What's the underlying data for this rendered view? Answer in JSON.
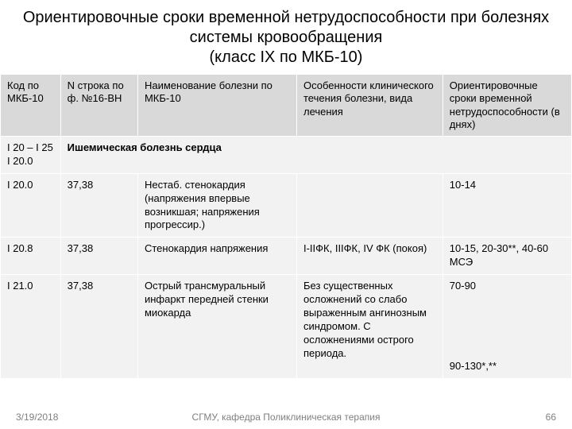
{
  "title": "Ориентировочные сроки временной нетрудоспособности при болезнях системы кровообращения\n(класс IX по МКБ-10)",
  "header": {
    "col1": "Код по МКБ-10",
    "col2": "N строка по ф. №16-ВН",
    "col3": "Наименование болезни по МКБ-10",
    "col4": "Особенности клинического течения болезни, вида лечения",
    "col5": "Ориентировочные сроки временной нетрудоспособности (в днях)"
  },
  "section": {
    "code": "I 20 – I 25 I 20.0",
    "title": "Ишемическая болезнь сердца"
  },
  "rows": [
    {
      "col1": "I 20.0",
      "col2": "37,38",
      "col3": "Нестаб. стенокардия (напряжения впервые возникшая; напряжения прогрессир.)",
      "col4": "",
      "col5": "10-14"
    },
    {
      "col1": "I  20.8",
      "col2": "37,38",
      "col3": "Стенокардия напряжения",
      "col4": "I-IIФК, IIIФК, IV ФК (покоя)",
      "col5": "10-15, 20-30**, 40-60 МСЭ"
    },
    {
      "col1": "I  21.0",
      "col2": "37,38",
      "col3": "Острый трансмуральный инфаркт передней стенки миокарда",
      "col4": "Без существенных осложнений со слабо выраженным ангинозным синдромом. С осложнениями острого периода.",
      "col5": "70-90\n\n\n\n\n\n90-130*,**"
    }
  ],
  "footer": {
    "date": "3/19/2018",
    "center": "СГМУ, кафедра Поликлиническая терапия",
    "page": "66"
  }
}
